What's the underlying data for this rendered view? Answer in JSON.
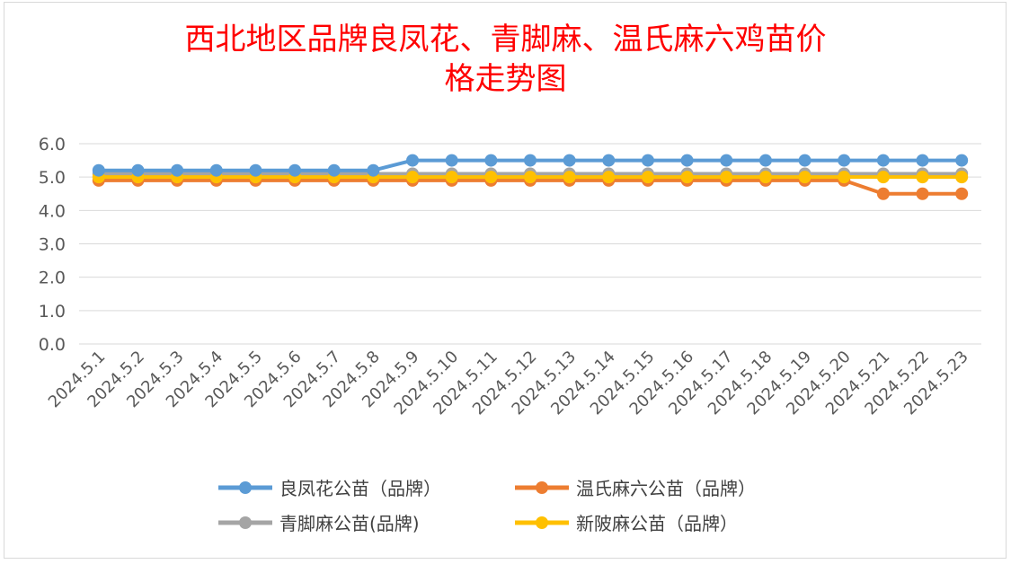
{
  "chart_data": {
    "type": "line",
    "title_lines": [
      "西北地区品牌良凤花、青脚麻、温氏麻六鸡苗价",
      "格走势图"
    ],
    "xlabel": "",
    "ylabel": "",
    "ylim": [
      0,
      6
    ],
    "yticks": [
      "0.0",
      "1.0",
      "2.0",
      "3.0",
      "4.0",
      "5.0",
      "6.0"
    ],
    "grid": true,
    "legend_position": "bottom",
    "categories": [
      "2024.5.1",
      "2024.5.2",
      "2024.5.3",
      "2024.5.4",
      "2024.5.5",
      "2024.5.6",
      "2024.5.7",
      "2024.5.8",
      "2024.5.9",
      "2024.5.10",
      "2024.5.11",
      "2024.5.12",
      "2024.5.13",
      "2024.5.14",
      "2024.5.15",
      "2024.5.16",
      "2024.5.17",
      "2024.5.18",
      "2024.5.19",
      "2024.5.20",
      "2024.5.21",
      "2024.5.22",
      "2024.5.23"
    ],
    "series": [
      {
        "name": "良凤花公苗（品牌）",
        "color": "#5b9bd5",
        "values": [
          5.2,
          5.2,
          5.2,
          5.2,
          5.2,
          5.2,
          5.2,
          5.2,
          5.5,
          5.5,
          5.5,
          5.5,
          5.5,
          5.5,
          5.5,
          5.5,
          5.5,
          5.5,
          5.5,
          5.5,
          5.5,
          5.5,
          5.5
        ]
      },
      {
        "name": "温氏麻六公苗（品牌）",
        "color": "#ed7d31",
        "values": [
          4.9,
          4.9,
          4.9,
          4.9,
          4.9,
          4.9,
          4.9,
          4.9,
          4.9,
          4.9,
          4.9,
          4.9,
          4.9,
          4.9,
          4.9,
          4.9,
          4.9,
          4.9,
          4.9,
          4.9,
          4.5,
          4.5,
          4.5
        ]
      },
      {
        "name": "青脚麻公苗(品牌)",
        "color": "#a5a5a5",
        "values": [
          5.1,
          5.1,
          5.1,
          5.1,
          5.1,
          5.1,
          5.1,
          5.1,
          5.1,
          5.1,
          5.1,
          5.1,
          5.1,
          5.1,
          5.1,
          5.1,
          5.1,
          5.1,
          5.1,
          5.1,
          5.1,
          5.1,
          5.1
        ]
      },
      {
        "name": "新陂麻公苗（品牌）",
        "color": "#ffc000",
        "values": [
          5.0,
          5.0,
          5.0,
          5.0,
          5.0,
          5.0,
          5.0,
          5.0,
          5.0,
          5.0,
          5.0,
          5.0,
          5.0,
          5.0,
          5.0,
          5.0,
          5.0,
          5.0,
          5.0,
          5.0,
          5.0,
          5.0,
          5.0
        ]
      }
    ],
    "draw_order": [
      2,
      1,
      3,
      0
    ]
  }
}
